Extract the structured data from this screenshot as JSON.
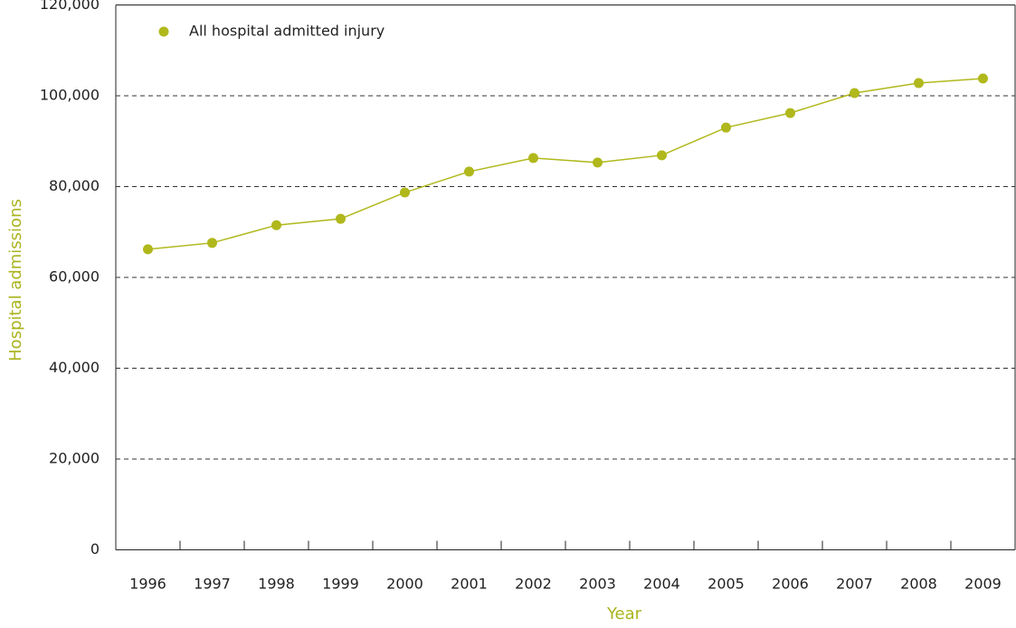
{
  "chart_data": {
    "type": "line",
    "x_label": "Year",
    "y_label": "Hospital admissions",
    "categories": [
      "1996",
      "1997",
      "1998",
      "1999",
      "2000",
      "2001",
      "2002",
      "2003",
      "2004",
      "2005",
      "2006",
      "2007",
      "2008",
      "2009"
    ],
    "series": [
      {
        "name": "All hospital admitted injury",
        "color": "#b0b81c",
        "values": [
          66200,
          67600,
          71500,
          72900,
          78700,
          83300,
          86300,
          85300,
          86900,
          93000,
          96200,
          100600,
          102800,
          103800
        ]
      }
    ],
    "ylim": [
      0,
      120000
    ],
    "yticks": [
      0,
      {
        "value": 20000,
        "label": "20,000"
      },
      {
        "value": 40000,
        "label": "40,000"
      },
      {
        "value": 60000,
        "label": "60,000"
      },
      {
        "value": 80000,
        "label": "80,000"
      },
      {
        "value": 100000,
        "label": "100,000"
      },
      {
        "value": 120000,
        "label": "120,000"
      }
    ],
    "grid": true,
    "legend": "top-left"
  }
}
